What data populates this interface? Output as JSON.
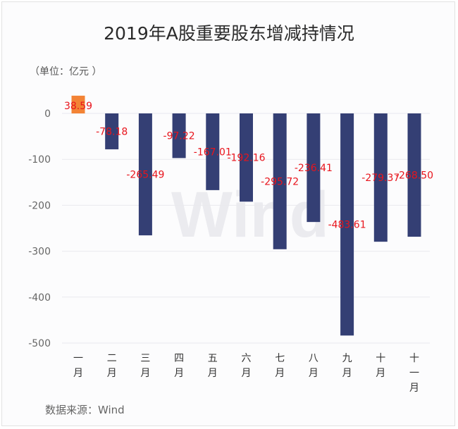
{
  "chart_data": {
    "type": "bar",
    "title": "2019年A股重要股东增减持情况",
    "unit_label": "（单位：亿元 ）",
    "source_label": "数据来源：Wind",
    "watermark": "Wind",
    "categories": [
      "一月",
      "二月",
      "三月",
      "四月",
      "五月",
      "六月",
      "七月",
      "八月",
      "九月",
      "十月",
      "十一月"
    ],
    "values": [
      38.59,
      -78.18,
      -265.49,
      -97.22,
      -167.01,
      -192.16,
      -295.72,
      -236.41,
      -483.61,
      -279.37,
      -268.5
    ],
    "value_labels": [
      "38.59",
      "-78.18",
      "-265.49",
      "-97.22",
      "-167.01",
      "-192.16",
      "-295.72",
      "-236.41",
      "-483.61",
      "-279.37",
      "-268.50"
    ],
    "yticks": [
      "0",
      "-100",
      "-200",
      "-300",
      "-400",
      "-500"
    ],
    "ylim": [
      -500,
      38.59
    ],
    "grid": true,
    "colors": {
      "negative_bar": "#343f74",
      "positive_bar": "#f38335",
      "data_label": "#e8141c",
      "grid": "#e9e9ee",
      "axis_text": "#666666"
    }
  }
}
